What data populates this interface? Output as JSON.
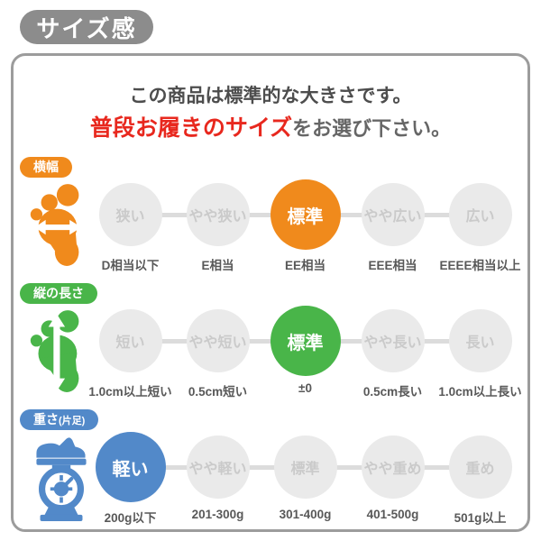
{
  "badge": "サイズ感",
  "header": {
    "line1": "この商品は標準的な大きさです。",
    "line2_red": "普段お履きのサイズ",
    "line2_rest": "をお選び下さい。"
  },
  "colors": {
    "badge_bg": "#8C8C8C",
    "box_border": "#9C9C9C",
    "red_text": "#E8281E",
    "gray_circle": "#EAEAEA",
    "gray_circle_text": "#CACACA",
    "connector": "#DCDCDC",
    "orange": "#F08A1C",
    "green": "#49B549",
    "blue": "#5289C9"
  },
  "sections": [
    {
      "id": "width",
      "label_main": "横幅",
      "label_sub": "",
      "color": "#F08A1C",
      "icon": "foot-width-icon",
      "selected_index": 2,
      "options": [
        {
          "label": "狭い",
          "caption": "D相当以下"
        },
        {
          "label": "やや狭い",
          "caption": "E相当"
        },
        {
          "label": "標準",
          "caption": "EE相当"
        },
        {
          "label": "やや広い",
          "caption": "EEE相当"
        },
        {
          "label": "広い",
          "caption": "EEEE相当以上"
        }
      ]
    },
    {
      "id": "length",
      "label_main": "縦の長さ",
      "label_sub": "",
      "color": "#49B549",
      "icon": "foot-length-icon",
      "selected_index": 2,
      "options": [
        {
          "label": "短い",
          "caption": "1.0cm以上短い"
        },
        {
          "label": "やや短い",
          "caption": "0.5cm短い"
        },
        {
          "label": "標準",
          "caption": "±0"
        },
        {
          "label": "やや長い",
          "caption": "0.5cm長い"
        },
        {
          "label": "長い",
          "caption": "1.0cm以上長い"
        }
      ]
    },
    {
      "id": "weight",
      "label_main": "重さ",
      "label_sub": "(片足)",
      "color": "#5289C9",
      "icon": "scale-icon",
      "selected_index": 0,
      "options": [
        {
          "label": "軽い",
          "caption": "200g以下"
        },
        {
          "label": "やや軽い",
          "caption": "201-300g"
        },
        {
          "label": "標準",
          "caption": "301-400g"
        },
        {
          "label": "やや重め",
          "caption": "401-500g"
        },
        {
          "label": "重め",
          "caption": "501g以上"
        }
      ]
    }
  ]
}
